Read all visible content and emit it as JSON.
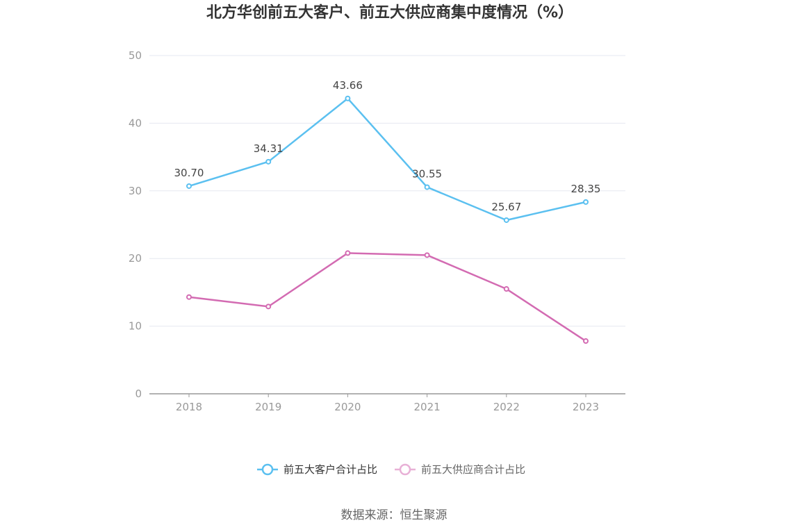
{
  "chart_data": {
    "type": "line",
    "title": "北方华创前五大客户、前五大供应商集中度情况（%）",
    "categories": [
      "2018",
      "2019",
      "2020",
      "2021",
      "2022",
      "2023"
    ],
    "ylim": [
      0,
      50
    ],
    "yticks": [
      0,
      10,
      20,
      30,
      40,
      50
    ],
    "grid": true,
    "legend_position": "bottom-center",
    "series": [
      {
        "name": "前五大客户合计占比",
        "color": "#5bc0f0",
        "values": [
          30.7,
          34.31,
          43.66,
          30.55,
          25.67,
          28.35
        ],
        "labels": [
          "30.70",
          "34.31",
          "43.66",
          "30.55",
          "25.67",
          "28.35"
        ],
        "show_labels": true
      },
      {
        "name": "前五大供应商合计占比",
        "color": "#d36bb2",
        "legend_color": "#e8b0d6",
        "values": [
          14.3,
          12.9,
          20.8,
          20.5,
          15.5,
          7.8
        ],
        "show_labels": false
      }
    ]
  },
  "source": "数据来源：恒生聚源"
}
